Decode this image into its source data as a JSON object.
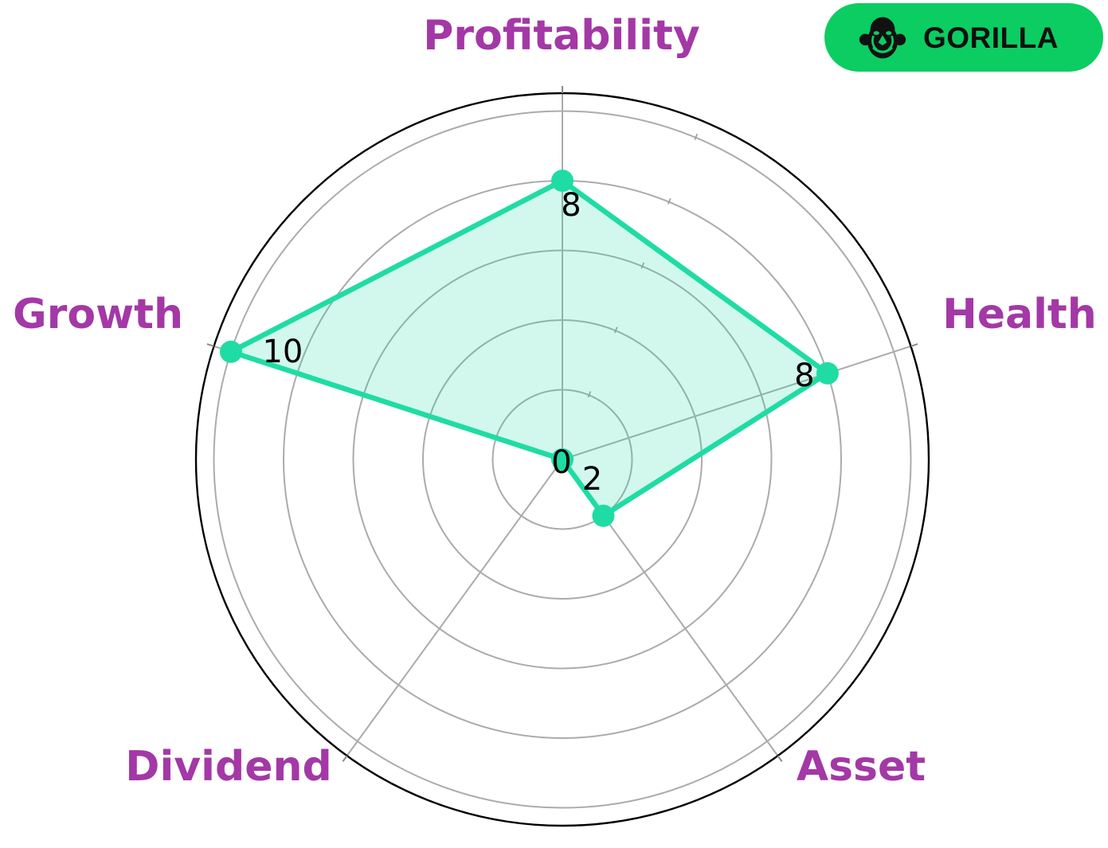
{
  "badge": {
    "label": "GORILLA",
    "icon": "gorilla-face-icon",
    "bg_color": "#0bcd62",
    "text_color": "#101010",
    "icon_color": "#111111"
  },
  "chart_data": {
    "type": "radar",
    "categories": [
      "Profitability",
      "Health",
      "Asset",
      "Dividend",
      "Growth"
    ],
    "values": [
      8,
      8,
      2,
      0,
      10
    ],
    "axes": [
      {
        "label": "Profitability",
        "value": 8
      },
      {
        "label": "Health",
        "value": 8
      },
      {
        "label": "Asset",
        "value": 2
      },
      {
        "label": "Dividend",
        "value": 0
      },
      {
        "label": "Growth",
        "value": 10
      }
    ],
    "rlim": [
      0,
      10
    ],
    "ring_ticks": [
      2,
      4,
      6,
      8,
      10
    ],
    "grid": true,
    "start_angle": "top",
    "direction": "clockwise",
    "title": "",
    "colors": {
      "series_line": "#1fdca4",
      "series_fill_alpha": 0.2,
      "grid_line": "#ababab",
      "outer_ring": "#000000",
      "value_label": "#000000",
      "axis_label": "#a338a6"
    }
  }
}
